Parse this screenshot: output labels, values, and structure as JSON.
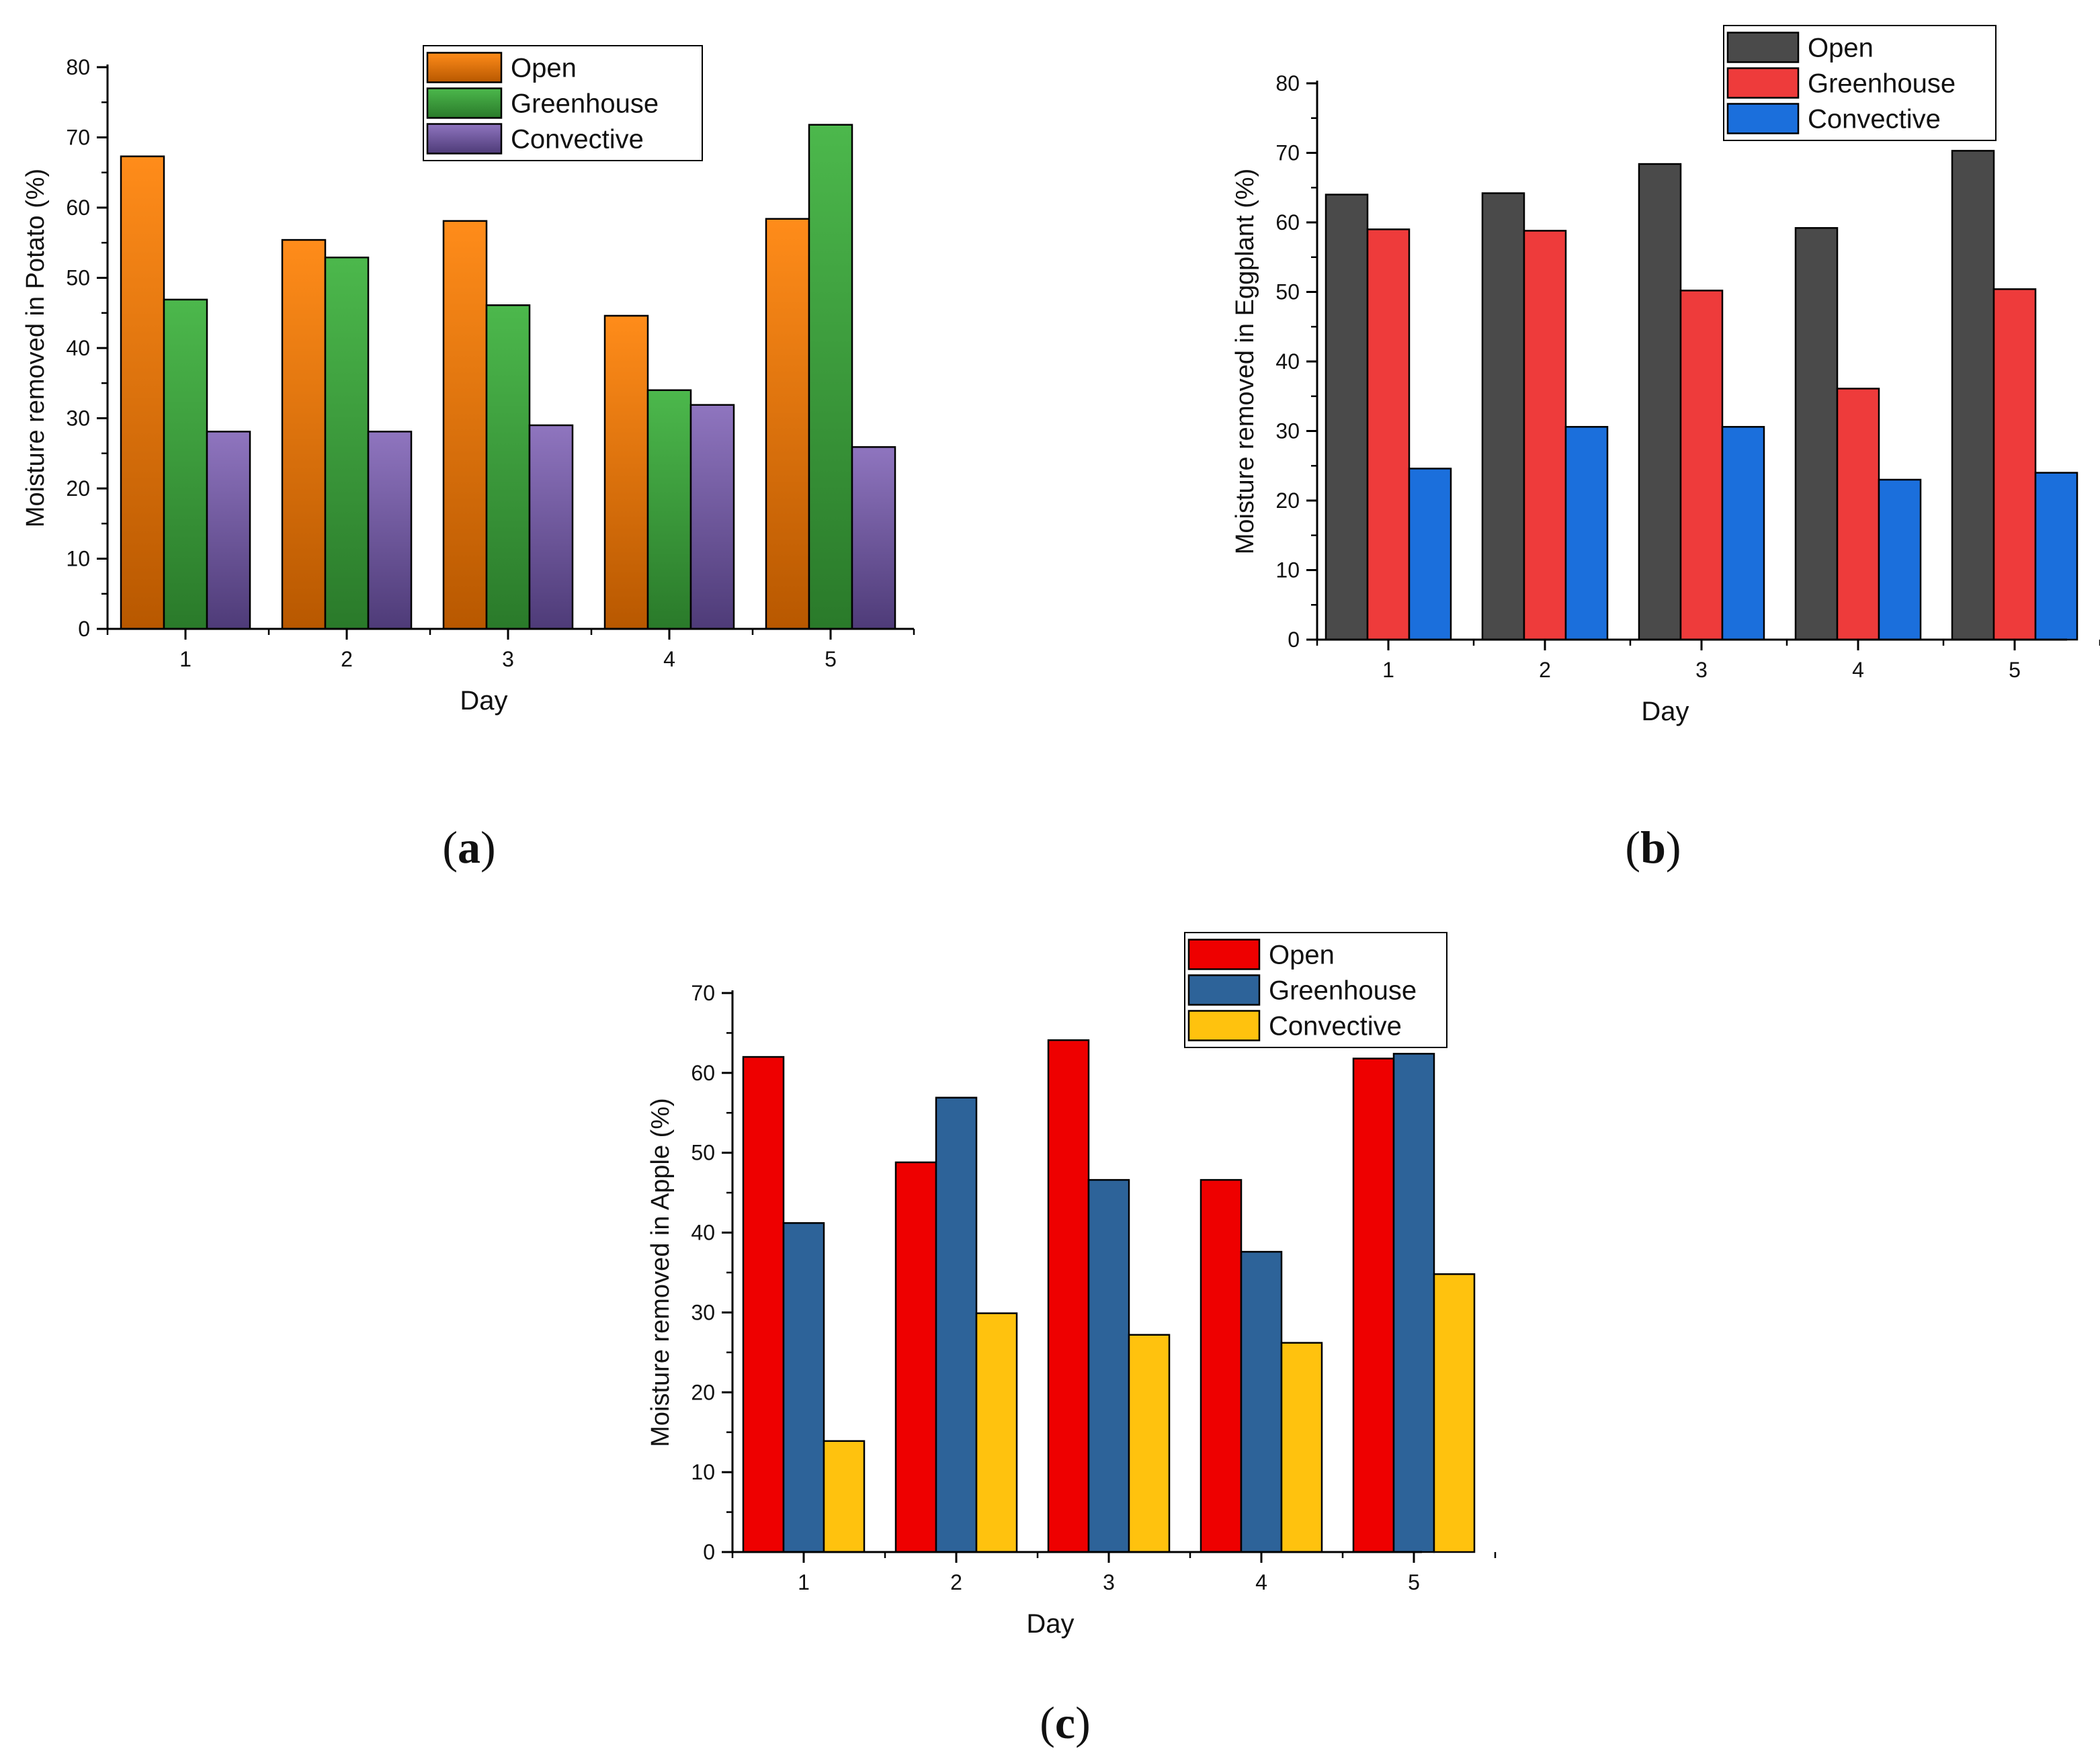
{
  "panels": {
    "a": {
      "label": "a"
    },
    "b": {
      "label": "b"
    },
    "c": {
      "label": "c"
    }
  },
  "chart_data": [
    {
      "id": "a",
      "type": "bar",
      "title": "",
      "xlabel": "Day",
      "ylabel": "Moisture removed in Potato (%)",
      "categories": [
        "1",
        "2",
        "3",
        "4",
        "5"
      ],
      "ylim": [
        0,
        80
      ],
      "yticks": [
        0,
        10,
        20,
        30,
        40,
        50,
        60,
        70,
        80
      ],
      "legend_position": "top-right",
      "gradient": true,
      "series": [
        {
          "name": "Open",
          "values": [
            67.3,
            55.4,
            58.1,
            44.6,
            58.4
          ],
          "color": "#ff8c1a",
          "dark": "#b85800"
        },
        {
          "name": "Greenhouse",
          "values": [
            46.9,
            52.9,
            46.1,
            34.0,
            71.8
          ],
          "color": "#4cb84c",
          "dark": "#2a7a2a"
        },
        {
          "name": "Convective",
          "values": [
            28.1,
            28.1,
            29.0,
            31.9,
            25.9
          ],
          "color": "#8f75bf",
          "dark": "#4e3b78"
        }
      ]
    },
    {
      "id": "b",
      "type": "bar",
      "title": "",
      "xlabel": "Day",
      "ylabel": "Moisture removed in Eggplant (%)",
      "categories": [
        "1",
        "2",
        "3",
        "4",
        "5"
      ],
      "ylim": [
        0,
        80
      ],
      "yticks": [
        0,
        10,
        20,
        30,
        40,
        50,
        60,
        70,
        80
      ],
      "legend_position": "top-right",
      "gradient": false,
      "series": [
        {
          "name": "Open",
          "values": [
            64.0,
            64.2,
            68.4,
            59.2,
            70.3
          ],
          "color": "#4a4a4a"
        },
        {
          "name": "Greenhouse",
          "values": [
            59.0,
            58.8,
            50.2,
            36.1,
            50.4
          ],
          "color": "#ee3b3b"
        },
        {
          "name": "Convective",
          "values": [
            24.6,
            30.6,
            30.6,
            23.0,
            24.0
          ],
          "color": "#1b6fdc"
        }
      ]
    },
    {
      "id": "c",
      "type": "bar",
      "title": "",
      "xlabel": "Day",
      "ylabel": "Moisture removed in Apple (%)",
      "categories": [
        "1",
        "2",
        "3",
        "4",
        "5"
      ],
      "ylim": [
        0,
        70
      ],
      "yticks": [
        0,
        10,
        20,
        30,
        40,
        50,
        60,
        70
      ],
      "legend_position": "top-right",
      "gradient": false,
      "series": [
        {
          "name": "Open",
          "values": [
            62.0,
            48.8,
            64.1,
            46.6,
            61.8
          ],
          "color": "#ee0000"
        },
        {
          "name": "Greenhouse",
          "values": [
            41.2,
            56.9,
            46.6,
            37.6,
            62.4
          ],
          "color": "#2d6399"
        },
        {
          "name": "Convective",
          "values": [
            13.9,
            29.9,
            27.2,
            26.2,
            34.8
          ],
          "color": "#ffc20e"
        }
      ]
    }
  ]
}
